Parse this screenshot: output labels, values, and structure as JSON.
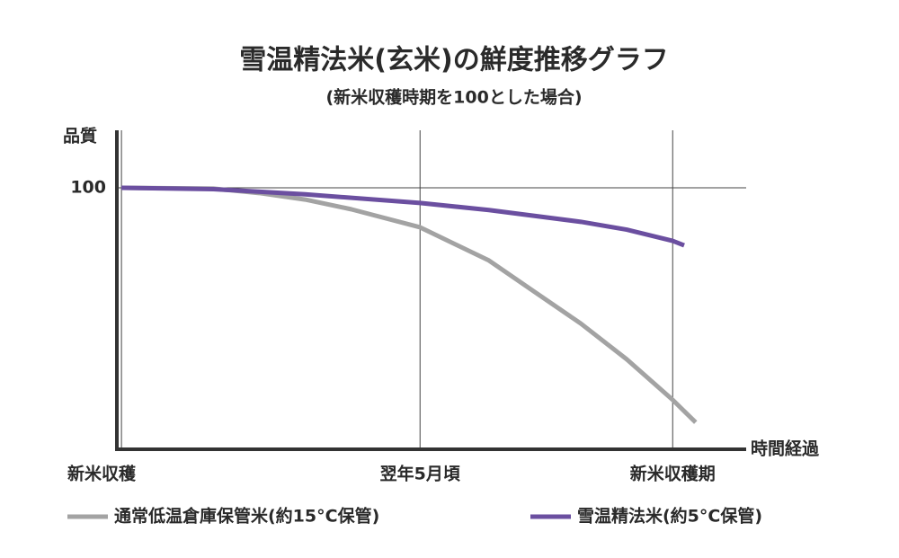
{
  "chart_data": {
    "type": "line",
    "title": "雪温精法米(玄米)の鮮度推移グラフ",
    "subtitle": "(新米収穫時期を100とした場合)",
    "y_label": "品質",
    "x_label": "時間経過",
    "xlim": [
      -0.1,
      13.6
    ],
    "ylim": [
      0,
      122
    ],
    "yticks": [
      100
    ],
    "xticks": [
      {
        "value": 0,
        "label": "新米収穫"
      },
      {
        "value": 6.5,
        "label": "翌年5月頃"
      },
      {
        "value": 12,
        "label": "新米収穫期"
      }
    ],
    "grid": true,
    "legend": "bottom",
    "series": [
      {
        "name": "通常低温倉庫保管米(約15°C保管)",
        "color": "#a3a3a3",
        "x": [
          0,
          2,
          3,
          4,
          5,
          6.5,
          8,
          9,
          10,
          11,
          12,
          12.5
        ],
        "values": [
          100,
          99.7,
          98,
          95.5,
          91.8,
          84.9,
          72.2,
          60.1,
          48.1,
          34.4,
          18.9,
          10.3
        ]
      },
      {
        "name": "雪温精法米(約5°C保管)",
        "color": "#6b4fa0",
        "x": [
          0,
          2,
          4,
          6.5,
          8,
          10,
          11,
          12,
          12.25
        ],
        "values": [
          100,
          99.5,
          97.5,
          94.2,
          91.5,
          87,
          84,
          79.7,
          78
        ]
      }
    ]
  }
}
